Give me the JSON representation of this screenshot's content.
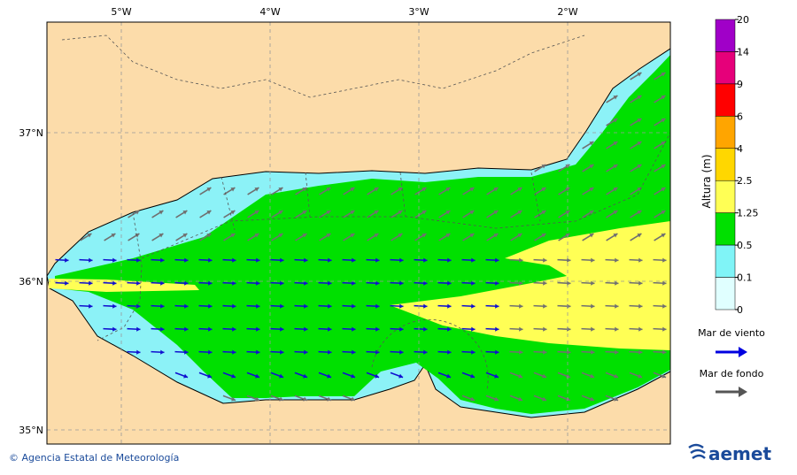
{
  "map": {
    "lon_labels": [
      "5°W",
      "4°W",
      "3°W",
      "2°W"
    ],
    "lat_labels": [
      "37°N",
      "36°N",
      "35°N"
    ]
  },
  "colorbar": {
    "title": "Altura (m)",
    "labels": [
      20,
      14,
      9,
      6,
      4,
      2.5,
      1.25,
      0.5,
      0.1,
      0
    ]
  },
  "legend": {
    "items": [
      "Mar de viento",
      "Mar de fondo"
    ]
  },
  "footer": {
    "credit": "© Agencia Estatal de Meteorología",
    "logo": "aemet"
  }
}
